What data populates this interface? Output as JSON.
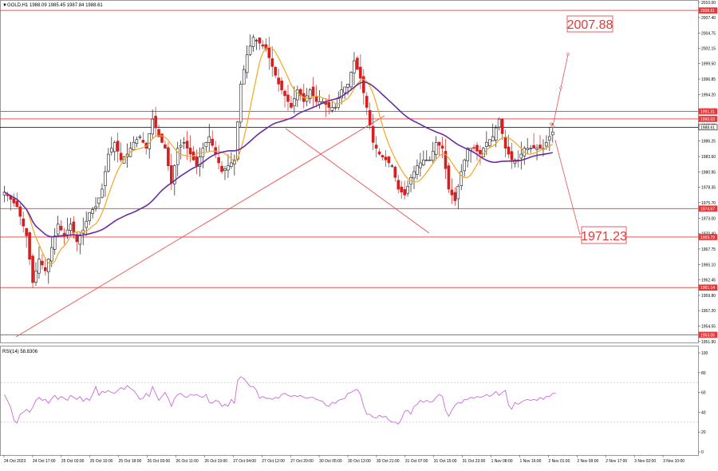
{
  "chart_data": {
    "type": "candlestick",
    "symbol_header": "GOLD,H1 1988.09 1985.45 1987.84 1988.61",
    "header_marker": "▼",
    "price_axis": {
      "min": 1951.6,
      "max": 2010.4,
      "ticks": [
        "2010.00",
        "2007.40",
        "2004.75",
        "2002.15",
        "1999.50",
        "1996.85",
        "1994.20",
        "1991.60",
        "1988.95",
        "1986.25",
        "1983.60",
        "1980.95",
        "1978.35",
        "1975.70",
        "1973.00",
        "1970.40",
        "1967.75",
        "1965.10",
        "1962.45",
        "1959.80",
        "1957.20",
        "1954.55",
        "1951.90"
      ]
    },
    "level_labels": [
      {
        "price": 2008.61,
        "label": "2008.61",
        "color": "#e23a3a"
      },
      {
        "price": 1991.31,
        "label": "1991.31",
        "color": "#e23a3a"
      },
      {
        "price": 1990.03,
        "label": "1990.03",
        "color": "#e23a3a"
      },
      {
        "price": 1988.61,
        "label": "1988.61",
        "color": "#000000"
      },
      {
        "price": 1974.67,
        "label": "1974.67",
        "color": "#e23a3a"
      },
      {
        "price": 1969.79,
        "label": "1969.79",
        "color": "#e23a3a"
      },
      {
        "price": 1961.14,
        "label": "1961.14",
        "color": "#e23a3a"
      },
      {
        "price": 1953.05,
        "label": "1953.05",
        "color": "#e23a3a"
      }
    ],
    "targets": [
      {
        "label": "2007.88",
        "price": 2007.88,
        "direction": "up"
      },
      {
        "label": "1971.23",
        "price": 1971.23,
        "direction": "down"
      }
    ],
    "time_labels": [
      "24 Oct 2023",
      "24 Oct 17:00",
      "25 Oct 02:00",
      "25 Oct 10:00",
      "25 Oct 18:00",
      "26 Oct 03:00",
      "26 Oct 11:00",
      "26 Oct 19:00",
      "27 Oct 04:00",
      "27 Oct 12:00",
      "27 Oct 20:00",
      "30 Oct 05:00",
      "30 Oct 13:00",
      "30 Oct 21:00",
      "31 Oct 07:00",
      "31 Oct 15:00",
      "31 Oct 23:00",
      "1 Nov 08:00",
      "1 Nov 16:00",
      "2 Nov 01:00",
      "2 Nov 09:00",
      "2 Nov 17:00",
      "3 Nov 02:00",
      "3 Nov 10:00"
    ],
    "close_path": [
      [
        0,
        1977.5
      ],
      [
        4,
        1975
      ],
      [
        7,
        1970
      ],
      [
        9,
        1962
      ],
      [
        11,
        1966
      ],
      [
        13,
        1964
      ],
      [
        15,
        1968
      ],
      [
        17,
        1972
      ],
      [
        19,
        1970
      ],
      [
        21,
        1972
      ],
      [
        23,
        1969
      ],
      [
        25,
        1971
      ],
      [
        27,
        1974
      ],
      [
        29,
        1975
      ],
      [
        31,
        1978
      ],
      [
        33,
        1984
      ],
      [
        35,
        1986
      ],
      [
        37,
        1983
      ],
      [
        39,
        1984
      ],
      [
        41,
        1986
      ],
      [
        43,
        1987
      ],
      [
        45,
        1985
      ],
      [
        47,
        1990
      ],
      [
        49,
        1987
      ],
      [
        51,
        1985
      ],
      [
        53,
        1979
      ],
      [
        55,
        1985
      ],
      [
        57,
        1986
      ],
      [
        59,
        1984
      ],
      [
        61,
        1982
      ],
      [
        63,
        1985
      ],
      [
        65,
        1987
      ],
      [
        67,
        1984
      ],
      [
        69,
        1981
      ],
      [
        71,
        1982
      ],
      [
        73,
        1983
      ],
      [
        75,
        1996
      ],
      [
        77,
        2001
      ],
      [
        79,
        2004
      ],
      [
        81,
        2003
      ],
      [
        83,
        2002
      ],
      [
        85,
        1999
      ],
      [
        87,
        1996
      ],
      [
        89,
        1994
      ],
      [
        91,
        1992
      ],
      [
        93,
        1995
      ],
      [
        95,
        1993
      ],
      [
        97,
        1995
      ],
      [
        99,
        1993
      ],
      [
        101,
        1993
      ],
      [
        103,
        1992
      ],
      [
        105,
        1992
      ],
      [
        107,
        1995
      ],
      [
        109,
        1996
      ],
      [
        111,
        2000
      ],
      [
        113,
        1997
      ],
      [
        115,
        1992
      ],
      [
        117,
        1986
      ],
      [
        119,
        1984
      ],
      [
        121,
        1983
      ],
      [
        123,
        1982
      ],
      [
        125,
        1978
      ],
      [
        127,
        1977
      ],
      [
        129,
        1980
      ],
      [
        131,
        1982
      ],
      [
        133,
        1983
      ],
      [
        135,
        1983
      ],
      [
        137,
        1986
      ],
      [
        139,
        1985
      ],
      [
        141,
        1978
      ],
      [
        143,
        1976
      ],
      [
        145,
        1981
      ],
      [
        147,
        1985
      ],
      [
        149,
        1985
      ],
      [
        151,
        1984
      ],
      [
        153,
        1986
      ],
      [
        155,
        1987
      ],
      [
        157,
        1990
      ],
      [
        159,
        1985
      ],
      [
        161,
        1983
      ],
      [
        163,
        1983
      ],
      [
        165,
        1985
      ],
      [
        167,
        1985
      ],
      [
        169,
        1985
      ],
      [
        171,
        1985
      ],
      [
        173,
        1987
      ],
      [
        175,
        1988.6
      ]
    ],
    "indicators": {
      "fast_ma_color": "#f5a623",
      "slow_ma_color": "#6a2ca0"
    },
    "rsi": {
      "header": "RSI(14) 58.8306",
      "min": 0,
      "max": 100,
      "ticks": [
        "100",
        "80",
        "60",
        "40",
        "20",
        "0"
      ],
      "levels": [
        30,
        70
      ],
      "line_color": "#c86ad8",
      "values": [
        [
          0,
          58
        ],
        [
          2,
          45
        ],
        [
          3,
          32
        ],
        [
          4,
          29
        ],
        [
          5,
          38
        ],
        [
          6,
          40
        ],
        [
          7,
          43
        ],
        [
          8,
          40
        ],
        [
          9,
          45
        ],
        [
          10,
          52
        ],
        [
          11,
          55
        ],
        [
          12,
          52
        ],
        [
          13,
          53
        ],
        [
          14,
          49
        ],
        [
          15,
          54
        ],
        [
          16,
          57
        ],
        [
          17,
          53
        ],
        [
          18,
          56
        ],
        [
          19,
          54
        ],
        [
          20,
          52
        ],
        [
          21,
          57
        ],
        [
          22,
          55
        ],
        [
          23,
          53
        ],
        [
          24,
          56
        ],
        [
          25,
          51
        ],
        [
          26,
          54
        ],
        [
          27,
          52
        ],
        [
          28,
          58
        ],
        [
          29,
          66
        ],
        [
          30,
          57
        ],
        [
          31,
          61
        ],
        [
          32,
          60
        ],
        [
          33,
          62
        ],
        [
          34,
          60
        ],
        [
          35,
          59
        ],
        [
          36,
          62
        ],
        [
          37,
          65
        ],
        [
          38,
          63
        ],
        [
          39,
          67
        ],
        [
          40,
          64
        ],
        [
          41,
          62
        ],
        [
          42,
          58
        ],
        [
          43,
          53
        ],
        [
          44,
          54
        ],
        [
          45,
          59
        ],
        [
          46,
          56
        ],
        [
          47,
          66
        ],
        [
          48,
          59
        ],
        [
          49,
          52
        ],
        [
          50,
          56
        ],
        [
          51,
          60
        ],
        [
          52,
          54
        ],
        [
          53,
          46
        ],
        [
          54,
          54
        ],
        [
          55,
          58
        ],
        [
          56,
          59
        ],
        [
          57,
          56
        ],
        [
          58,
          55
        ],
        [
          59,
          58
        ],
        [
          60,
          57
        ],
        [
          61,
          58
        ],
        [
          62,
          56
        ],
        [
          63,
          55
        ],
        [
          64,
          58
        ],
        [
          65,
          50
        ],
        [
          66,
          49
        ],
        [
          67,
          52
        ],
        [
          68,
          51
        ],
        [
          69,
          46
        ],
        [
          70,
          48
        ],
        [
          71,
          46
        ],
        [
          72,
          53
        ],
        [
          73,
          49
        ],
        [
          74,
          72
        ],
        [
          75,
          76
        ],
        [
          76,
          74
        ],
        [
          77,
          70
        ],
        [
          78,
          66
        ],
        [
          79,
          66
        ],
        [
          80,
          62
        ],
        [
          81,
          54
        ],
        [
          82,
          56
        ],
        [
          83,
          54
        ],
        [
          84,
          54
        ],
        [
          85,
          53
        ],
        [
          86,
          55
        ],
        [
          87,
          54
        ],
        [
          88,
          58
        ],
        [
          89,
          59
        ],
        [
          90,
          57
        ],
        [
          91,
          56
        ],
        [
          92,
          57
        ],
        [
          93,
          56
        ],
        [
          94,
          57
        ],
        [
          95,
          55
        ],
        [
          96,
          54
        ],
        [
          97,
          55
        ],
        [
          98,
          55
        ],
        [
          99,
          53
        ],
        [
          100,
          52
        ],
        [
          101,
          51
        ],
        [
          102,
          47
        ],
        [
          103,
          46
        ],
        [
          104,
          50
        ],
        [
          105,
          49
        ],
        [
          106,
          52
        ],
        [
          107,
          53
        ],
        [
          108,
          54
        ],
        [
          109,
          59
        ],
        [
          110,
          60
        ],
        [
          111,
          62
        ],
        [
          112,
          63
        ],
        [
          113,
          58
        ],
        [
          114,
          46
        ],
        [
          115,
          38
        ],
        [
          116,
          38
        ],
        [
          117,
          35
        ],
        [
          118,
          34
        ],
        [
          119,
          37
        ],
        [
          120,
          35
        ],
        [
          121,
          36
        ],
        [
          122,
          32
        ],
        [
          123,
          30
        ],
        [
          124,
          30
        ],
        [
          125,
          28
        ],
        [
          126,
          33
        ],
        [
          127,
          41
        ],
        [
          128,
          42
        ],
        [
          129,
          38
        ],
        [
          130,
          46
        ],
        [
          131,
          48
        ],
        [
          132,
          52
        ],
        [
          133,
          50
        ],
        [
          134,
          52
        ],
        [
          135,
          50
        ],
        [
          136,
          51
        ],
        [
          137,
          55
        ],
        [
          138,
          58
        ],
        [
          139,
          56
        ],
        [
          140,
          42
        ],
        [
          141,
          36
        ],
        [
          142,
          42
        ],
        [
          143,
          47
        ],
        [
          144,
          50
        ],
        [
          145,
          49
        ],
        [
          146,
          53
        ],
        [
          147,
          53
        ],
        [
          148,
          55
        ],
        [
          149,
          54
        ],
        [
          150,
          56
        ],
        [
          151,
          55
        ],
        [
          152,
          56
        ],
        [
          153,
          58
        ],
        [
          154,
          56
        ],
        [
          155,
          58
        ],
        [
          156,
          61
        ],
        [
          157,
          57
        ],
        [
          158,
          60
        ],
        [
          159,
          62
        ],
        [
          160,
          47
        ],
        [
          161,
          43
        ],
        [
          162,
          50
        ],
        [
          163,
          48
        ],
        [
          164,
          50
        ],
        [
          165,
          52
        ],
        [
          166,
          53
        ],
        [
          167,
          52
        ],
        [
          168,
          53
        ],
        [
          169,
          52
        ],
        [
          170,
          55
        ],
        [
          171,
          53
        ],
        [
          172,
          56
        ],
        [
          173,
          56
        ],
        [
          174,
          59
        ],
        [
          175,
          59
        ]
      ]
    }
  }
}
